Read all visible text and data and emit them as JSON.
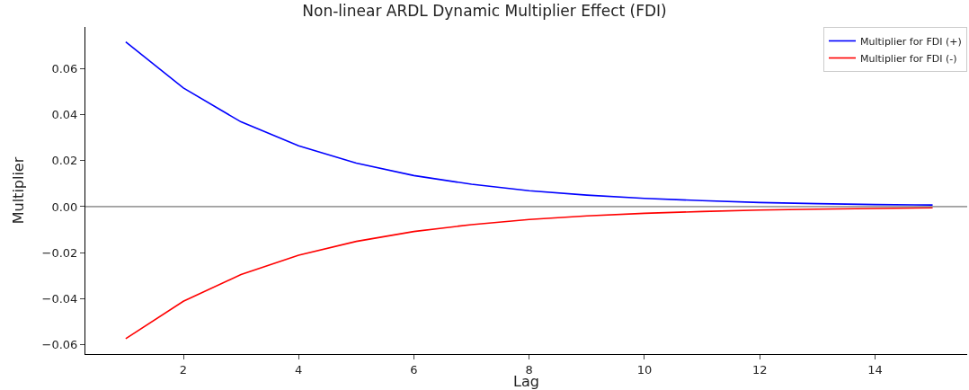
{
  "chart_data": {
    "type": "line",
    "title": "Non-linear ARDL Dynamic Multiplier Effect (FDI)",
    "xlabel": "Lag",
    "ylabel": "Multiplier",
    "x": [
      1,
      2,
      3,
      4,
      5,
      6,
      7,
      8,
      9,
      10,
      11,
      12,
      13,
      14,
      15
    ],
    "series": [
      {
        "name": "Multiplier for FDI (+)",
        "color": "#0000ff",
        "values": [
          0.0715,
          0.0515,
          0.0368,
          0.0264,
          0.0189,
          0.0135,
          0.0097,
          0.0069,
          0.005,
          0.0036,
          0.0026,
          0.0018,
          0.0013,
          0.0009,
          0.0007
        ]
      },
      {
        "name": "Multiplier for FDI (-)",
        "color": "#ff0000",
        "values": [
          -0.0573,
          -0.0411,
          -0.0295,
          -0.0211,
          -0.0151,
          -0.0108,
          -0.0078,
          -0.0056,
          -0.004,
          -0.0029,
          -0.0021,
          -0.0015,
          -0.0011,
          -0.0008,
          -0.0005
        ]
      }
    ],
    "xlim": [
      0.3,
      15.6
    ],
    "ylim": [
      -0.064,
      0.078
    ],
    "xticks": [
      2,
      4,
      6,
      8,
      10,
      12,
      14
    ],
    "yticks": [
      {
        "value": -0.06,
        "label": "−0.06"
      },
      {
        "value": -0.04,
        "label": "−0.04"
      },
      {
        "value": -0.02,
        "label": "−0.02"
      },
      {
        "value": 0,
        "label": "0.00"
      },
      {
        "value": 0.02,
        "label": "0.02"
      },
      {
        "value": 0.04,
        "label": "0.04"
      },
      {
        "value": 0.06,
        "label": "0.06"
      }
    ],
    "ref_lines": [
      {
        "axis": "y",
        "value": 0,
        "color": "#555555",
        "line_style": "solid"
      }
    ],
    "legend": "top right",
    "marker": "none",
    "line_style": "solid"
  }
}
